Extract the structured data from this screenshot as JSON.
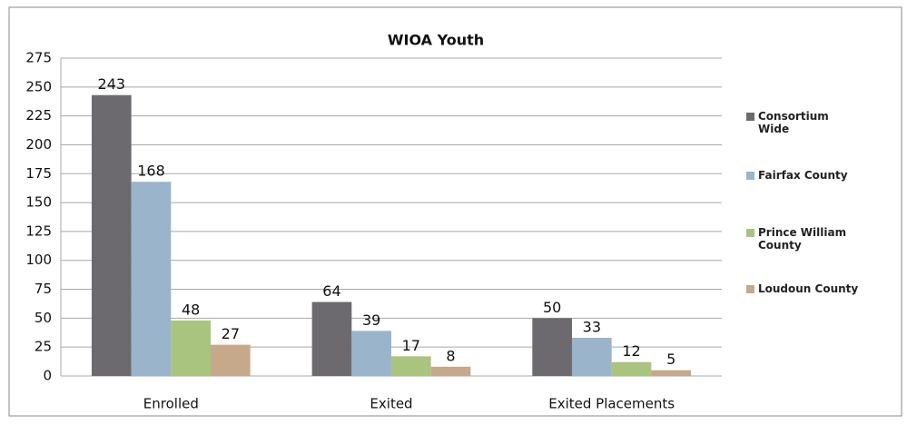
{
  "chart_data": {
    "type": "bar",
    "title": "WIOA Youth",
    "categories": [
      "Enrolled",
      "Exited",
      "Exited Placements"
    ],
    "series": [
      {
        "name": "Consortium Wide",
        "color": "#6d6a6f",
        "values": [
          243,
          64,
          50
        ]
      },
      {
        "name": "Fairfax County",
        "color": "#9ab4cc",
        "values": [
          168,
          39,
          33
        ]
      },
      {
        "name": "Prince William County",
        "color": "#a9c47f",
        "values": [
          48,
          17,
          12
        ]
      },
      {
        "name": "Loudoun County",
        "color": "#c6a98b",
        "values": [
          27,
          8,
          5
        ]
      }
    ],
    "ylim": [
      0,
      275
    ],
    "yticks": [
      0,
      25,
      50,
      75,
      100,
      125,
      150,
      175,
      200,
      225,
      250,
      275
    ],
    "grid": true,
    "legend": "right"
  }
}
